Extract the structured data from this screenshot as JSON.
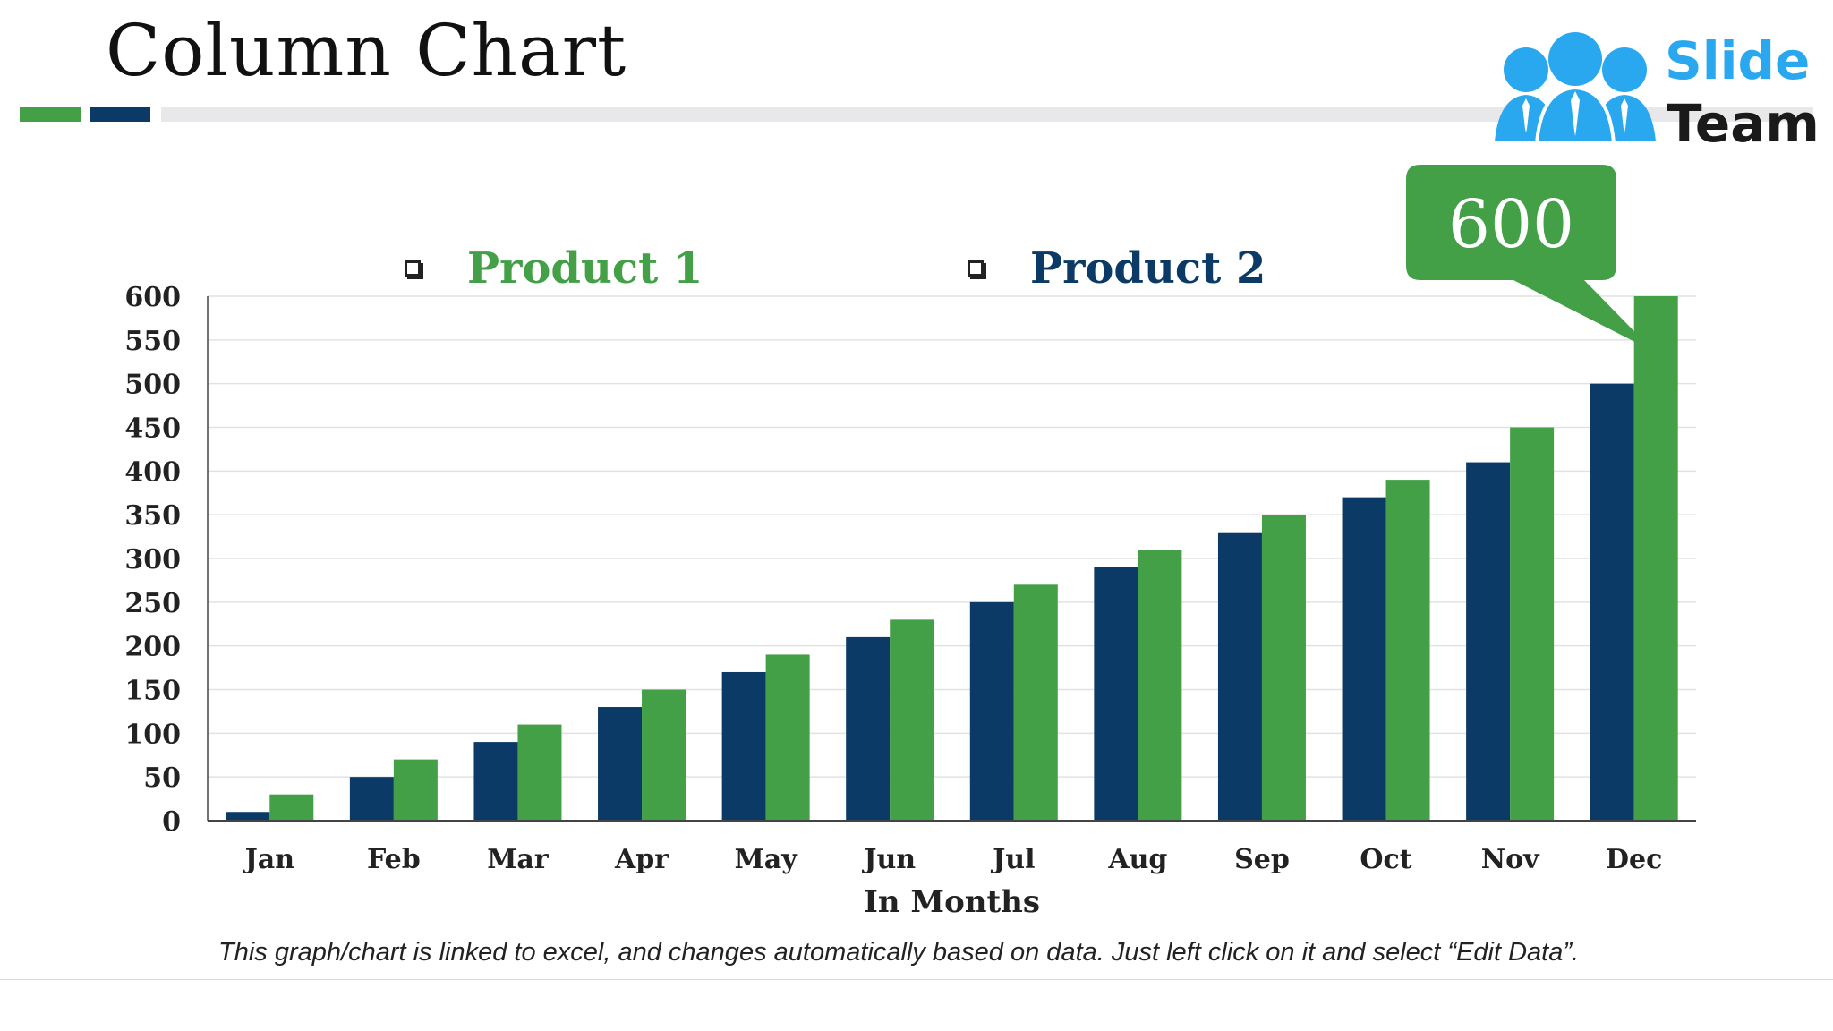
{
  "title": "Column Chart",
  "logo": {
    "word1": "Slide",
    "word2": "Team"
  },
  "legend": [
    {
      "label": "Product 1",
      "color": "#43a047"
    },
    {
      "label": "Product 2",
      "color": "#0b3a66"
    }
  ],
  "callout": {
    "text": "600"
  },
  "footer_note": "This graph/chart is linked to excel, and changes automatically based on data. Just left click on it and select “Edit Data”.",
  "chart_data": {
    "type": "bar",
    "title": "",
    "xlabel": "In Months",
    "ylabel": "",
    "categories": [
      "Jan",
      "Feb",
      "Mar",
      "Apr",
      "May",
      "Jun",
      "Jul",
      "Aug",
      "Sep",
      "Oct",
      "Nov",
      "Dec"
    ],
    "series": [
      {
        "name": "Product 2",
        "color": "#0b3a66",
        "values": [
          10,
          50,
          90,
          130,
          170,
          210,
          250,
          290,
          330,
          370,
          410,
          500
        ]
      },
      {
        "name": "Product 1",
        "color": "#43a047",
        "values": [
          30,
          70,
          110,
          150,
          190,
          230,
          270,
          310,
          350,
          390,
          450,
          600
        ]
      }
    ],
    "ylim": [
      0,
      600
    ],
    "yticks": [
      0,
      50,
      100,
      150,
      200,
      250,
      300,
      350,
      400,
      450,
      500,
      550,
      600
    ],
    "grid": true,
    "legend_position": "top"
  }
}
